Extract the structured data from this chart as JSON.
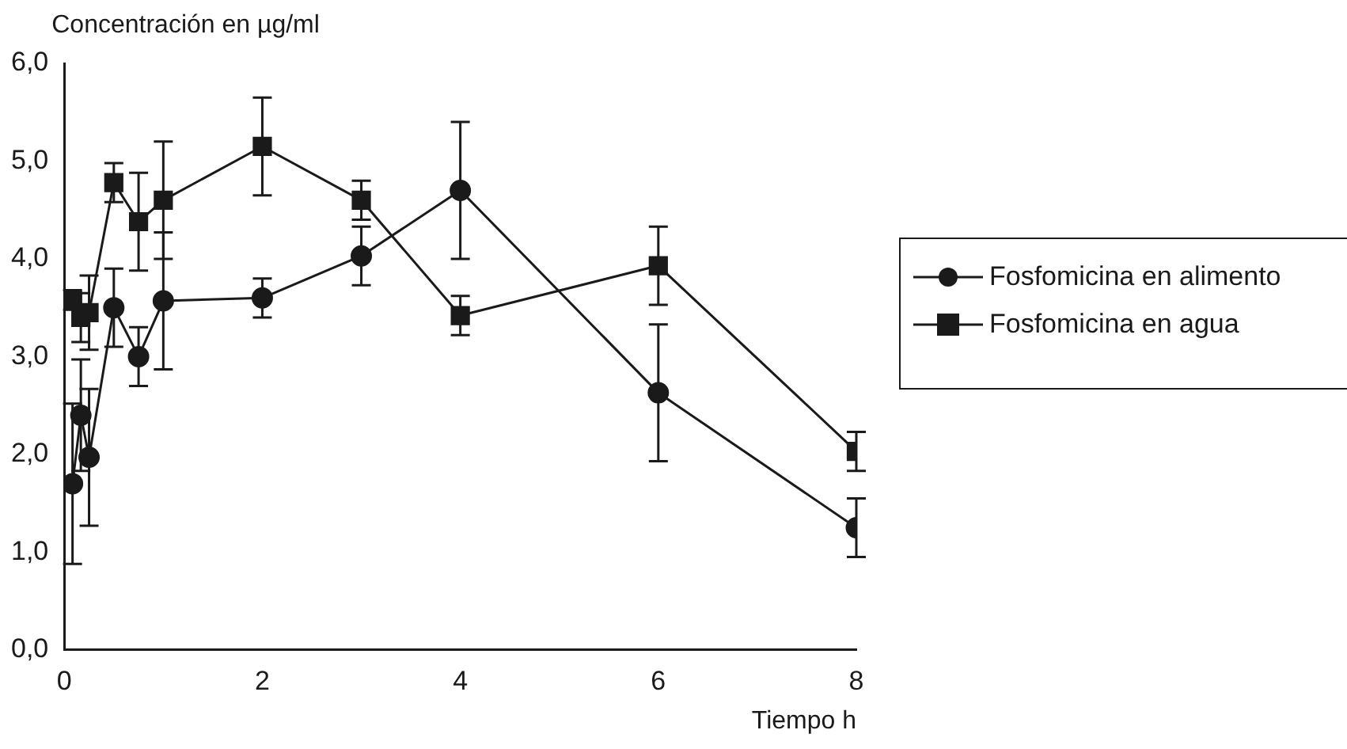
{
  "chart_data": {
    "type": "line",
    "ylabel": "Concentración en µg/ml",
    "xlabel": "Tiempo h",
    "x": [
      0.083,
      0.167,
      0.25,
      0.5,
      0.75,
      1,
      2,
      3,
      4,
      6,
      8
    ],
    "series": [
      {
        "name": "Fosfomicina en alimento",
        "color": "#1a1a1a",
        "marker": "circle",
        "values": [
          1.7,
          2.4,
          1.97,
          3.5,
          3.0,
          3.57,
          3.6,
          4.03,
          4.7,
          2.63,
          1.25
        ],
        "errors": [
          0.82,
          0.57,
          0.7,
          0.4,
          0.3,
          0.7,
          0.2,
          0.3,
          0.7,
          0.7,
          0.3
        ]
      },
      {
        "name": "Fosfomicina en agua",
        "color": "#1a1a1a",
        "marker": "square",
        "values": [
          3.58,
          3.4,
          3.45,
          4.78,
          4.38,
          4.6,
          5.15,
          4.6,
          3.42,
          3.93,
          2.03
        ],
        "errors": [
          0.1,
          0.25,
          0.38,
          0.2,
          0.5,
          0.6,
          0.5,
          0.2,
          0.2,
          0.4,
          0.2
        ]
      }
    ],
    "xlim": [
      0,
      8
    ],
    "xticks": [
      0,
      2,
      4,
      6,
      8
    ],
    "ylim": [
      0,
      6
    ],
    "yticks": [
      {
        "value": 0,
        "label": "0,0"
      },
      {
        "value": 1,
        "label": "1,0"
      },
      {
        "value": 2,
        "label": "2,0"
      },
      {
        "value": 3,
        "label": "3,0"
      },
      {
        "value": 4,
        "label": "4,0"
      },
      {
        "value": 5,
        "label": "5,0"
      },
      {
        "value": 6,
        "label": "6,0"
      }
    ],
    "grid": false,
    "legend": "right",
    "line_style": "solid"
  }
}
